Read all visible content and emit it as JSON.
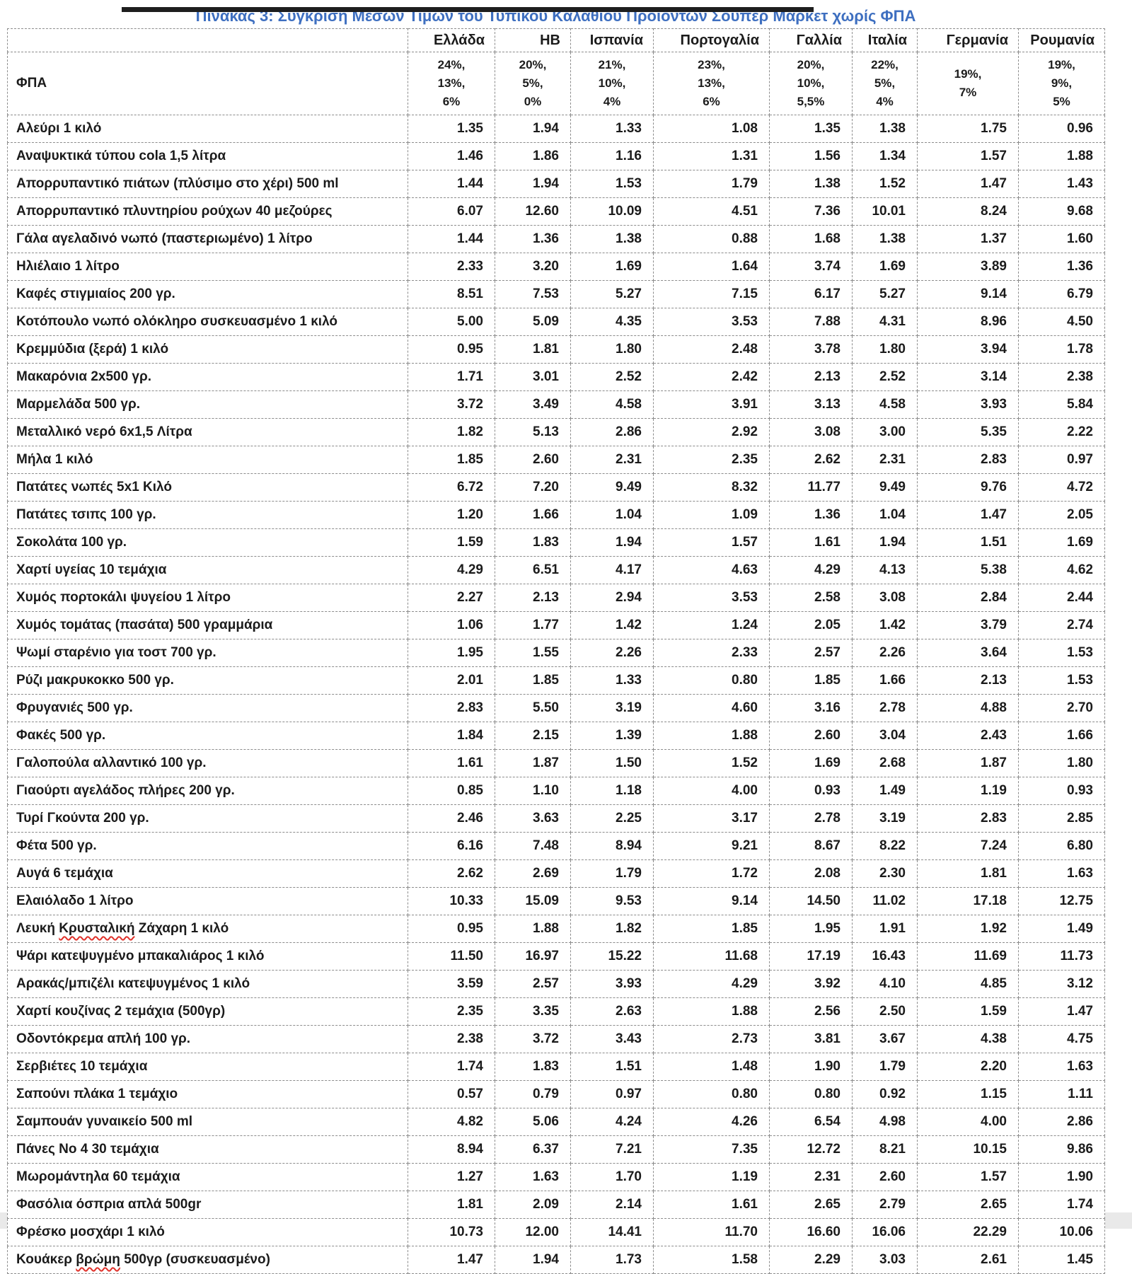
{
  "page": {
    "title": "Πίνακας 3: Σύγκριση Μέσων Τιμών του Τυπικού Καλαθιού Προϊόντων Σούπερ Μάρκετ χωρίς ΦΠΑ",
    "title_color": "#3e6fc0",
    "spellcheck_underline_color": "#e0312a"
  },
  "table": {
    "vat_label": "ΦΠΑ",
    "columns": [
      "Ελλάδα",
      "ΗΒ",
      "Ισπανία",
      "Πορτογαλία",
      "Γαλλία",
      "Ιταλία",
      "Γερμανία",
      "Ρουμανία"
    ],
    "vat_rates": [
      "24%,\n13%,\n6%",
      "20%,\n5%,\n0%",
      "21%,\n10%,\n4%",
      "23%,\n13%,\n6%",
      "20%,\n10%,\n5,5%",
      "22%,\n5%,\n4%",
      "19%,\n7%",
      "19%,\n9%,\n5%"
    ],
    "rows": [
      {
        "name": "Αλεύρι 1 κιλό",
        "values": [
          "1.35",
          "1.94",
          "1.33",
          "1.08",
          "1.35",
          "1.38",
          "1.75",
          "0.96"
        ]
      },
      {
        "name": "Αναψυκτικά τύπου cola 1,5 λίτρα",
        "values": [
          "1.46",
          "1.86",
          "1.16",
          "1.31",
          "1.56",
          "1.34",
          "1.57",
          "1.88"
        ]
      },
      {
        "name": "Απορρυπαντικό πιάτων (πλύσιμο στο χέρι) 500 ml",
        "values": [
          "1.44",
          "1.94",
          "1.53",
          "1.79",
          "1.38",
          "1.52",
          "1.47",
          "1.43"
        ]
      },
      {
        "name": "Απορρυπαντικό πλυντηρίου ρούχων 40 μεζούρες",
        "values": [
          "6.07",
          "12.60",
          "10.09",
          "4.51",
          "7.36",
          "10.01",
          "8.24",
          "9.68"
        ]
      },
      {
        "name": "Γάλα αγελαδινό νωπό (παστεριωμένο) 1 λίτρο",
        "values": [
          "1.44",
          "1.36",
          "1.38",
          "0.88",
          "1.68",
          "1.38",
          "1.37",
          "1.60"
        ]
      },
      {
        "name": "Ηλιέλαιο 1 λίτρο",
        "values": [
          "2.33",
          "3.20",
          "1.69",
          "1.64",
          "3.74",
          "1.69",
          "3.89",
          "1.36"
        ]
      },
      {
        "name": "Καφές στιγμιαίος 200 γρ.",
        "values": [
          "8.51",
          "7.53",
          "5.27",
          "7.15",
          "6.17",
          "5.27",
          "9.14",
          "6.79"
        ]
      },
      {
        "name": "Κοτόπουλο νωπό ολόκληρο συσκευασμένο 1 κιλό",
        "values": [
          "5.00",
          "5.09",
          "4.35",
          "3.53",
          "7.88",
          "4.31",
          "8.96",
          "4.50"
        ]
      },
      {
        "name": "Κρεμμύδια (ξερά) 1 κιλό",
        "values": [
          "0.95",
          "1.81",
          "1.80",
          "2.48",
          "3.78",
          "1.80",
          "3.94",
          "1.78"
        ]
      },
      {
        "name": "Μακαρόνια 2x500 γρ.",
        "values": [
          "1.71",
          "3.01",
          "2.52",
          "2.42",
          "2.13",
          "2.52",
          "3.14",
          "2.38"
        ]
      },
      {
        "name": "Μαρμελάδα 500 γρ.",
        "values": [
          "3.72",
          "3.49",
          "4.58",
          "3.91",
          "3.13",
          "4.58",
          "3.93",
          "5.84"
        ]
      },
      {
        "name": "Μεταλλικό νερό 6x1,5 Λίτρα",
        "values": [
          "1.82",
          "5.13",
          "2.86",
          "2.92",
          "3.08",
          "3.00",
          "5.35",
          "2.22"
        ]
      },
      {
        "name": "Μήλα 1 κιλό",
        "values": [
          "1.85",
          "2.60",
          "2.31",
          "2.35",
          "2.62",
          "2.31",
          "2.83",
          "0.97"
        ]
      },
      {
        "name": "Πατάτες νωπές 5x1 Κιλό",
        "values": [
          "6.72",
          "7.20",
          "9.49",
          "8.32",
          "11.77",
          "9.49",
          "9.76",
          "4.72"
        ]
      },
      {
        "name": "Πατάτες τσιπς 100 γρ.",
        "values": [
          "1.20",
          "1.66",
          "1.04",
          "1.09",
          "1.36",
          "1.04",
          "1.47",
          "2.05"
        ]
      },
      {
        "name": "Σοκολάτα 100 γρ.",
        "values": [
          "1.59",
          "1.83",
          "1.94",
          "1.57",
          "1.61",
          "1.94",
          "1.51",
          "1.69"
        ]
      },
      {
        "name": "Χαρτί υγείας 10 τεμάχια",
        "values": [
          "4.29",
          "6.51",
          "4.17",
          "4.63",
          "4.29",
          "4.13",
          "5.38",
          "4.62"
        ]
      },
      {
        "name": "Χυμός πορτοκάλι ψυγείου 1 λίτρο",
        "values": [
          "2.27",
          "2.13",
          "2.94",
          "3.53",
          "2.58",
          "3.08",
          "2.84",
          "2.44"
        ]
      },
      {
        "name": "Χυμός τομάτας (πασάτα) 500 γραμμάρια",
        "values": [
          "1.06",
          "1.77",
          "1.42",
          "1.24",
          "2.05",
          "1.42",
          "3.79",
          "2.74"
        ]
      },
      {
        "name": "Ψωμί σταρένιο για τοστ 700 γρ.",
        "values": [
          "1.95",
          "1.55",
          "2.26",
          "2.33",
          "2.57",
          "2.26",
          "3.64",
          "1.53"
        ]
      },
      {
        "name": "Ρύζι μακρυκοκκο 500 γρ.",
        "values": [
          "2.01",
          "1.85",
          "1.33",
          "0.80",
          "1.85",
          "1.66",
          "2.13",
          "1.53"
        ]
      },
      {
        "name": "Φρυγανιές 500 γρ.",
        "values": [
          "2.83",
          "5.50",
          "3.19",
          "4.60",
          "3.16",
          "2.78",
          "4.88",
          "2.70"
        ]
      },
      {
        "name": "Φακές 500 γρ.",
        "values": [
          "1.84",
          "2.15",
          "1.39",
          "1.88",
          "2.60",
          "3.04",
          "2.43",
          "1.66"
        ]
      },
      {
        "name": "Γαλοπούλα αλλαντικό 100 γρ.",
        "values": [
          "1.61",
          "1.87",
          "1.50",
          "1.52",
          "1.69",
          "2.68",
          "1.87",
          "1.80"
        ]
      },
      {
        "name": "Γιαούρτι αγελάδος πλήρες 200 γρ.",
        "values": [
          "0.85",
          "1.10",
          "1.18",
          "4.00",
          "0.93",
          "1.49",
          "1.19",
          "0.93"
        ]
      },
      {
        "name": "Τυρί Γκούντα 200 γρ.",
        "values": [
          "2.46",
          "3.63",
          "2.25",
          "3.17",
          "2.78",
          "3.19",
          "2.83",
          "2.85"
        ]
      },
      {
        "name": "Φέτα 500 γρ.",
        "values": [
          "6.16",
          "7.48",
          "8.94",
          "9.21",
          "8.67",
          "8.22",
          "7.24",
          "6.80"
        ]
      },
      {
        "name": "Αυγά 6 τεμάχια",
        "values": [
          "2.62",
          "2.69",
          "1.79",
          "1.72",
          "2.08",
          "2.30",
          "1.81",
          "1.63"
        ]
      },
      {
        "name": "Ελαιόλαδο 1 λίτρο",
        "values": [
          "10.33",
          "15.09",
          "9.53",
          "9.14",
          "14.50",
          "11.02",
          "17.18",
          "12.75"
        ]
      },
      {
        "name": "Λευκή Κρυσταλική Ζάχαρη 1 κιλό",
        "spellcheck_word": "Κρυσταλική",
        "values": [
          "0.95",
          "1.88",
          "1.82",
          "1.85",
          "1.95",
          "1.91",
          "1.92",
          "1.49"
        ]
      },
      {
        "name": "Ψάρι κατεψυγμένο μπακαλιάρος 1 κιλό",
        "values": [
          "11.50",
          "16.97",
          "15.22",
          "11.68",
          "17.19",
          "16.43",
          "11.69",
          "11.73"
        ]
      },
      {
        "name": "Αρακάς/μπιζέλι κατεψυγμένος 1 κιλό",
        "values": [
          "3.59",
          "2.57",
          "3.93",
          "4.29",
          "3.92",
          "4.10",
          "4.85",
          "3.12"
        ]
      },
      {
        "name": "Χαρτί κουζίνας 2 τεμάχια (500γρ)",
        "values": [
          "2.35",
          "3.35",
          "2.63",
          "1.88",
          "2.56",
          "2.50",
          "1.59",
          "1.47"
        ]
      },
      {
        "name": "Οδοντόκρεμα απλή 100 γρ.",
        "values": [
          "2.38",
          "3.72",
          "3.43",
          "2.73",
          "3.81",
          "3.67",
          "4.38",
          "4.75"
        ]
      },
      {
        "name": "Σερβιέτες 10 τεμάχια",
        "values": [
          "1.74",
          "1.83",
          "1.51",
          "1.48",
          "1.90",
          "1.79",
          "2.20",
          "1.63"
        ]
      },
      {
        "name": "Σαπούνι πλάκα 1 τεμάχιο",
        "values": [
          "0.57",
          "0.79",
          "0.97",
          "0.80",
          "0.80",
          "0.92",
          "1.15",
          "1.11"
        ]
      },
      {
        "name": "Σαμπουάν γυναικείο 500 ml",
        "values": [
          "4.82",
          "5.06",
          "4.24",
          "4.26",
          "6.54",
          "4.98",
          "4.00",
          "2.86"
        ]
      },
      {
        "name": "Πάνες Νο 4 30 τεμάχια",
        "values": [
          "8.94",
          "6.37",
          "7.21",
          "7.35",
          "12.72",
          "8.21",
          "10.15",
          "9.86"
        ]
      },
      {
        "name": "Μωρομάντηλα 60 τεμάχια",
        "values": [
          "1.27",
          "1.63",
          "1.70",
          "1.19",
          "2.31",
          "2.60",
          "1.57",
          "1.90"
        ]
      },
      {
        "name": "Φασόλια όσπρια απλά 500gr",
        "values": [
          "1.81",
          "2.09",
          "2.14",
          "1.61",
          "2.65",
          "2.79",
          "2.65",
          "1.74"
        ]
      },
      {
        "name": "Φρέσκο μοσχάρι 1 κιλό",
        "values": [
          "10.73",
          "12.00",
          "14.41",
          "11.70",
          "16.60",
          "16.06",
          "22.29",
          "10.06"
        ]
      },
      {
        "name": "Κουάκερ βρώμη 500γρ (συσκευασμένο)",
        "spellcheck_word": "βρώμη",
        "values": [
          "1.47",
          "1.94",
          "1.73",
          "1.58",
          "2.29",
          "3.03",
          "2.61",
          "1.45"
        ]
      }
    ]
  }
}
